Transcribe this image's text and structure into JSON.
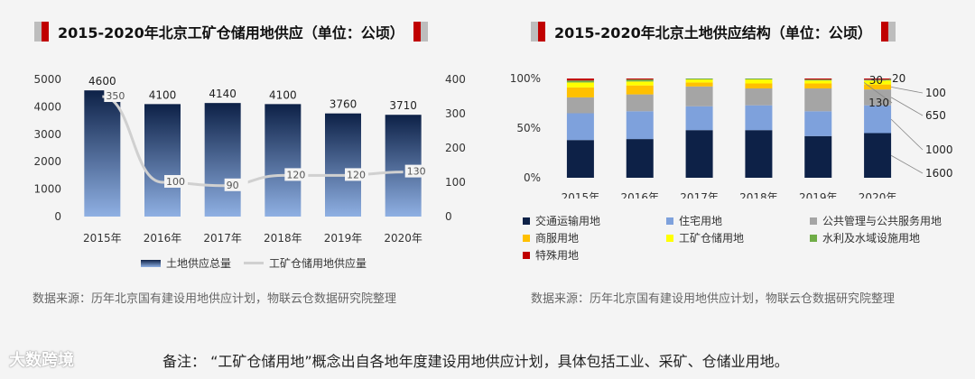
{
  "left": {
    "title": "2015-2020年北京工矿仓储用地供应（单位：公顷）",
    "source": "数据来源：历年北京国有建设用地供应计划，物联云仓数据研究院整理"
  },
  "right": {
    "title": "2015-2020年北京土地供应结构（单位：公顷）",
    "source": "数据来源：历年北京国有建设用地供应计划，物联云仓数据研究院整理"
  },
  "footer": {
    "logo": "大数跨境",
    "note": "备注：  “工矿仓储用地”概念出自各地年度建设用地供应计划，具体包括工业、采矿、仓储业用地。"
  },
  "chart_data": [
    {
      "type": "bar",
      "categories": [
        "2015年",
        "2016年",
        "2017年",
        "2018年",
        "2019年",
        "2020年"
      ],
      "series": [
        {
          "name": "土地供应总量",
          "kind": "bar",
          "axis": "left",
          "values": [
            4600,
            4100,
            4140,
            4100,
            3760,
            3710
          ],
          "labels": [
            "4600",
            "4100",
            "4140",
            "4100",
            "3760",
            "3710"
          ]
        },
        {
          "name": "工矿仓储用地供应量",
          "kind": "line",
          "axis": "right",
          "values": [
            350,
            100,
            90,
            120,
            120,
            130
          ],
          "labels": [
            "350",
            "100",
            "90",
            "120",
            "120",
            "130"
          ]
        }
      ],
      "ylim": [
        0,
        5000
      ],
      "yticks": [
        "0",
        "1000",
        "2000",
        "3000",
        "4000",
        "5000"
      ],
      "y2lim": [
        0,
        400
      ],
      "y2ticks": [
        "0",
        "100",
        "200",
        "300",
        "400"
      ],
      "colors": {
        "bar_top": "#0d2147",
        "bar_bottom": "#8fb0e3",
        "line": "#d0d0d0"
      }
    },
    {
      "type": "bar",
      "stacked": true,
      "percent": true,
      "categories": [
        "2015年",
        "2016年",
        "2017年",
        "2018年",
        "2019年",
        "2020年"
      ],
      "yticks": [
        "0%",
        "50%",
        "100%"
      ],
      "series": [
        {
          "name": "交通运输用地",
          "color": "#0d2147",
          "values": [
            38,
            39,
            48,
            48,
            42,
            45
          ]
        },
        {
          "name": "住宅用地",
          "color": "#7ea1dc",
          "values": [
            27,
            28,
            24,
            25,
            25,
            28
          ]
        },
        {
          "name": "公共管理与公共服务用地",
          "color": "#a5a5a5",
          "values": [
            16,
            17,
            20,
            17,
            23,
            16
          ]
        },
        {
          "name": "商服用地",
          "color": "#ffc000",
          "values": [
            10,
            9,
            4,
            5,
            5,
            5
          ]
        },
        {
          "name": "工矿仓储用地",
          "color": "#ffff00",
          "values": [
            5,
            4,
            3,
            4,
            3,
            4
          ]
        },
        {
          "name": "水利及水域设施用地",
          "color": "#70ad47",
          "values": [
            2,
            2,
            1,
            1,
            1,
            1
          ]
        },
        {
          "name": "特殊用地",
          "color": "#c00000",
          "values": [
            2,
            1,
            0,
            0,
            1,
            1
          ]
        }
      ],
      "annotations_2020": [
        {
          "series": "交通运输用地",
          "label": "1600"
        },
        {
          "series": "住宅用地",
          "label": "1000"
        },
        {
          "series": "公共管理与公共服务用地",
          "label": "650"
        },
        {
          "series": "商服用地",
          "label": "100"
        },
        {
          "series": "工矿仓储用地",
          "label": "130"
        },
        {
          "series": "水利及水域设施用地",
          "label": "30"
        },
        {
          "series": "特殊用地",
          "label": "20"
        }
      ]
    }
  ]
}
